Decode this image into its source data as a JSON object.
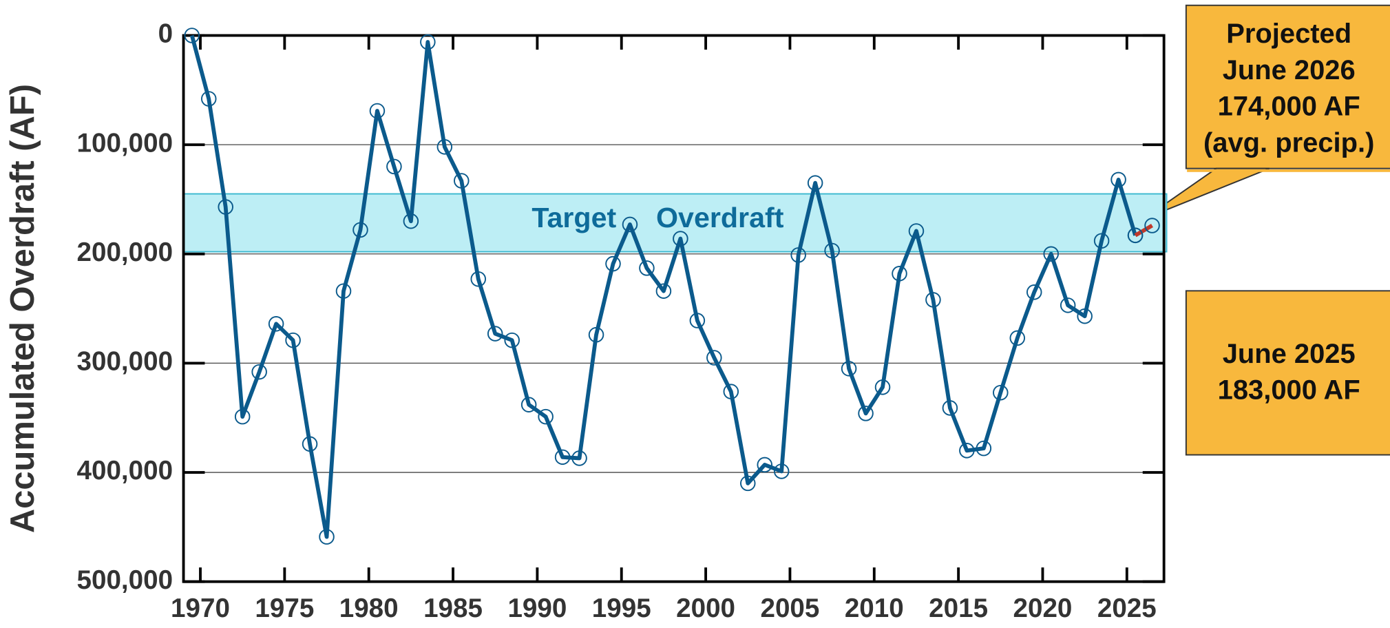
{
  "chart_data": {
    "type": "line",
    "ylabel": "Accumulated Overdraft (AF)",
    "xlim": [
      1969,
      2027.2
    ],
    "xticks": [
      1970,
      1975,
      1980,
      1985,
      1990,
      1995,
      2000,
      2005,
      2010,
      2015,
      2020,
      2025
    ],
    "ylim": [
      500000,
      0
    ],
    "yticks": [
      0,
      {
        "value": 100000,
        "label": "100,000"
      },
      {
        "value": 200000,
        "label": "200,000"
      },
      {
        "value": 300000,
        "label": "300,000"
      },
      {
        "value": 400000,
        "label": "400,000"
      },
      {
        "value": 500000,
        "label": "500,000"
      }
    ],
    "grid": true,
    "target_band": {
      "label": "Target Overdraft",
      "range": [
        145000,
        198000
      ],
      "color": "#bdeef5"
    },
    "series": [
      {
        "color": "#0b5a8c",
        "x": [
          1969.5,
          1970.5,
          1971.5,
          1972.5,
          1973.5,
          1974.5,
          1975.5,
          1976.5,
          1977.5,
          1978.5,
          1979.5,
          1980.5,
          1981.5,
          1982.5,
          1983.5,
          1984.5,
          1985.5,
          1986.5,
          1987.5,
          1988.5,
          1989.5,
          1990.5,
          1991.5,
          1992.5,
          1993.5,
          1994.5,
          1995.5,
          1996.5,
          1997.5,
          1998.5,
          1999.5,
          2000.5,
          2001.5,
          2002.5,
          2003.5,
          2004.5,
          2005.5,
          2006.5,
          2007.5,
          2008.5,
          2009.5,
          2010.5,
          2011.5,
          2012.5,
          2013.5,
          2014.5,
          2015.5,
          2016.5,
          2017.5,
          2018.5,
          2019.5,
          2020.5,
          2021.5,
          2022.5,
          2023.5,
          2024.5,
          2025.5
        ],
        "values": [
          0,
          58000,
          157000,
          349000,
          308000,
          264000,
          279000,
          374000,
          459000,
          234000,
          178000,
          69000,
          120000,
          170000,
          6000,
          102000,
          133000,
          223000,
          273000,
          279000,
          338000,
          349000,
          386000,
          387000,
          274000,
          209000,
          173000,
          213000,
          234000,
          186000,
          261000,
          295000,
          326000,
          410000,
          393000,
          399000,
          201000,
          135000,
          197000,
          305000,
          346000,
          322000,
          218000,
          179000,
          242000,
          341000,
          380000,
          378000,
          327000,
          277000,
          235000,
          200000,
          247000,
          257000,
          188000,
          132000,
          183000
        ]
      },
      {
        "color": "#c0392b",
        "x": [
          2025.5,
          2026.5
        ],
        "values": [
          183000,
          174000
        ]
      }
    ],
    "annotations": [
      {
        "lines": [
          "Projected",
          "June 2026",
          "174,000 AF",
          "(avg. precip.)"
        ]
      },
      {
        "lines": [
          "June 2025",
          "183,000 AF"
        ]
      }
    ]
  }
}
